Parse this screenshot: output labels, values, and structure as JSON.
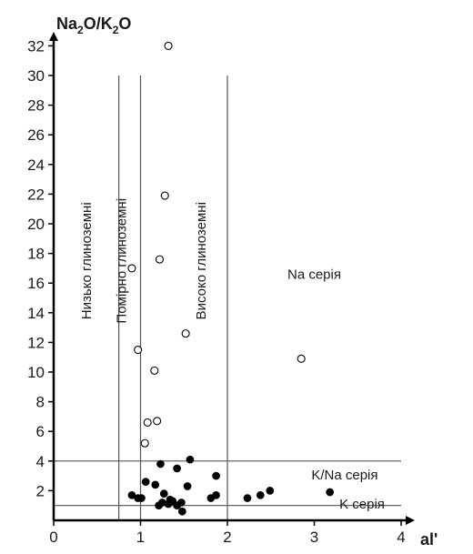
{
  "chart_data": {
    "type": "scatter",
    "title": "",
    "xlabel": "al'",
    "ylabel": "Na2O/K2O",
    "xlim": [
      0,
      4
    ],
    "ylim": [
      0,
      33
    ],
    "x_ticks": [
      0,
      1,
      2,
      3,
      4
    ],
    "y_ticks": [
      2,
      4,
      6,
      8,
      10,
      12,
      14,
      16,
      18,
      20,
      22,
      24,
      26,
      28,
      30,
      32
    ],
    "grid": false,
    "vertical_boundaries": [
      0.75,
      1.0,
      2.0
    ],
    "horizontal_boundaries": [
      1.0,
      4.0
    ],
    "zone_labels": [
      "Низько глиноземні",
      "Помірно глиноземні",
      "Високо глиноземні"
    ],
    "region_labels": [
      "Na серія",
      "K/Na серія",
      "K серія"
    ],
    "series": [
      {
        "marker": "open-circle",
        "points": [
          [
            1.32,
            32.0
          ],
          [
            1.28,
            21.9
          ],
          [
            1.22,
            17.6
          ],
          [
            0.9,
            17.0
          ],
          [
            1.52,
            12.6
          ],
          [
            0.97,
            11.5
          ],
          [
            2.85,
            10.9
          ],
          [
            1.16,
            10.1
          ],
          [
            1.19,
            6.7
          ],
          [
            1.08,
            6.6
          ],
          [
            1.05,
            5.2
          ]
        ]
      },
      {
        "marker": "filled-circle",
        "points": [
          [
            1.57,
            4.1
          ],
          [
            1.23,
            3.8
          ],
          [
            1.42,
            3.5
          ],
          [
            1.87,
            3.0
          ],
          [
            1.06,
            2.6
          ],
          [
            1.17,
            2.4
          ],
          [
            1.54,
            2.3
          ],
          [
            2.49,
            2.0
          ],
          [
            3.18,
            1.9
          ],
          [
            1.27,
            1.8
          ],
          [
            0.9,
            1.7
          ],
          [
            1.87,
            1.7
          ],
          [
            2.38,
            1.7
          ],
          [
            1.81,
            1.5
          ],
          [
            0.97,
            1.5
          ],
          [
            1.01,
            1.5
          ],
          [
            2.23,
            1.5
          ],
          [
            1.34,
            1.4
          ],
          [
            1.37,
            1.3
          ],
          [
            1.25,
            1.2
          ],
          [
            1.47,
            1.2
          ],
          [
            1.32,
            1.1
          ],
          [
            1.21,
            1.0
          ],
          [
            1.42,
            1.0
          ],
          [
            1.48,
            0.6
          ]
        ]
      }
    ]
  },
  "axis_title_y": {
    "base": "Na",
    "sub1": "2",
    "mid": "O/K",
    "sub2": "2",
    "end": "O"
  },
  "axis_title_x": "al'"
}
